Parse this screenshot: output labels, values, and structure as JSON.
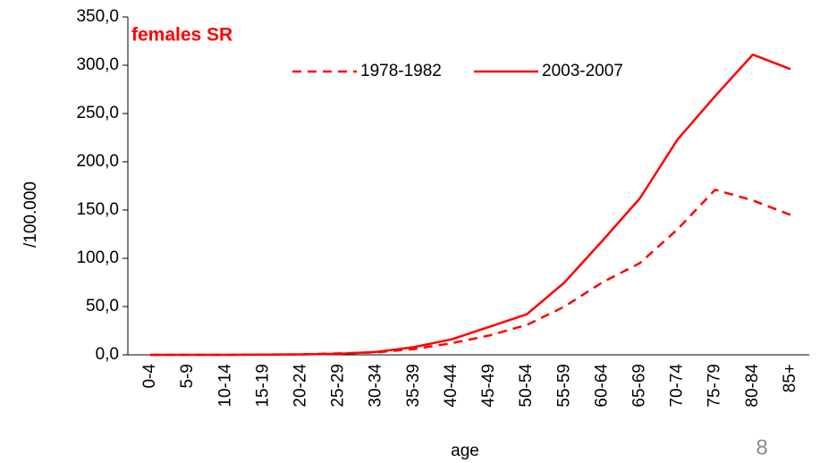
{
  "chart_data": {
    "type": "line",
    "title": "females SR",
    "x_label": "age",
    "y_label": "/100.000",
    "categories": [
      "0-4",
      "5-9",
      "10-14",
      "15-19",
      "20-24",
      "25-29",
      "30-34",
      "35-39",
      "40-44",
      "45-49",
      "50-54",
      "55-59",
      "60-64",
      "65-69",
      "70-74",
      "75-79",
      "80-84",
      "85+"
    ],
    "series": [
      {
        "name": "1978-1982",
        "color": "#ff0000",
        "style": "dashed",
        "values": [
          0,
          0,
          0,
          0.3,
          0.5,
          1.5,
          2.5,
          6,
          12,
          20,
          31,
          50,
          75,
          95,
          130,
          171,
          160,
          145
        ]
      },
      {
        "name": "2003-2007",
        "color": "#ff0000",
        "style": "solid",
        "values": [
          0,
          0,
          0,
          0.3,
          0.5,
          1,
          3,
          8,
          16,
          29,
          42,
          75,
          118,
          162,
          223,
          268,
          311,
          296
        ]
      }
    ],
    "ylim": [
      0,
      350
    ],
    "yticks": [
      {
        "value": 0,
        "label": "0,0"
      },
      {
        "value": 50,
        "label": "50,0"
      },
      {
        "value": 100,
        "label": "100,0"
      },
      {
        "value": 150,
        "label": "150,0"
      },
      {
        "value": 200,
        "label": "200,0"
      },
      {
        "value": 250,
        "label": "250,0"
      },
      {
        "value": 300,
        "label": "300,0"
      },
      {
        "value": 350,
        "label": "350,0"
      }
    ],
    "grid": false,
    "legend": "top"
  },
  "page_number": "8"
}
